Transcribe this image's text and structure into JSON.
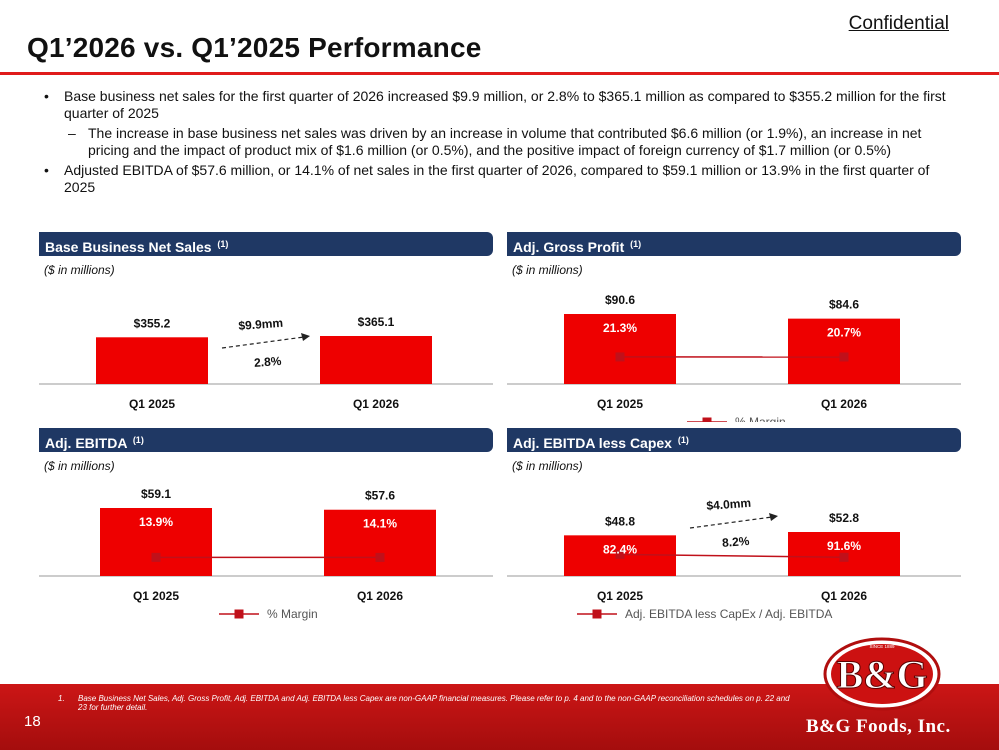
{
  "header": {
    "confidential": "Confidential",
    "title": "Q1’2026 vs. Q1’2025 Performance"
  },
  "bullets": {
    "b1": "Base business net sales for the first quarter of 2026 increased $9.9 million, or 2.8% to $365.1 million as compared to $355.2 million for the first quarter of 2025",
    "b1_sub": "The increase in base business net sales was driven by an increase in volume that contributed $6.6 million (or 1.9%), an increase in net pricing and the impact of product mix of $1.6 million (or 0.5%), and the positive impact of foreign currency of $1.7 million (or 0.5%)",
    "b2": "Adjusted EBITDA of $57.6 million, or 14.1% of net sales in the first quarter of 2026, compared to $59.1 million or 13.9% in the first quarter of 2025"
  },
  "panels": {
    "net_sales": {
      "title": "Base Business Net Sales",
      "footnote_ref": "(1)",
      "unit": "($ in millions)"
    },
    "gross_profit": {
      "title": "Adj. Gross Profit",
      "footnote_ref": "(1)",
      "unit": "($ in millions)"
    },
    "ebitda": {
      "title": "Adj. EBITDA",
      "footnote_ref": "(1)",
      "unit": "($ in millions)"
    },
    "ebitda_capex": {
      "title": "Adj. EBITDA less Capex",
      "footnote_ref": "(1)",
      "unit": "($ in millions)"
    }
  },
  "chart_data": [
    {
      "id": "net_sales",
      "type": "bar",
      "title": "Base Business Net Sales",
      "categories": [
        "Q1 2025",
        "Q1 2026"
      ],
      "values": [
        355.2,
        365.1
      ],
      "value_labels": [
        "$355.2",
        "$365.1"
      ],
      "annotation": {
        "change": "$9.9mm",
        "pct": "2.8%"
      },
      "colors": {
        "bar": "#ee0000",
        "line": "#c0101a"
      }
    },
    {
      "id": "gross_profit",
      "type": "bar",
      "title": "Adj. Gross Profit",
      "categories": [
        "Q1 2025",
        "Q1 2026"
      ],
      "values": [
        90.6,
        84.6
      ],
      "value_labels": [
        "$90.6",
        "$84.6"
      ],
      "margin_labels": [
        "21.3%",
        "20.7%"
      ],
      "margin_values": [
        21.3,
        20.7
      ],
      "legend": "% Margin",
      "colors": {
        "bar": "#ee0000",
        "line": "#c0101a"
      }
    },
    {
      "id": "ebitda",
      "type": "bar",
      "title": "Adj. EBITDA",
      "categories": [
        "Q1 2025",
        "Q1 2026"
      ],
      "values": [
        59.1,
        57.6
      ],
      "value_labels": [
        "$59.1",
        "$57.6"
      ],
      "margin_labels": [
        "13.9%",
        "14.1%"
      ],
      "margin_values": [
        13.9,
        14.1
      ],
      "legend": "% Margin",
      "colors": {
        "bar": "#ee0000",
        "line": "#c0101a"
      }
    },
    {
      "id": "ebitda_capex",
      "type": "bar",
      "title": "Adj. EBITDA less Capex",
      "categories": [
        "Q1 2025",
        "Q1 2026"
      ],
      "values": [
        48.8,
        52.8
      ],
      "value_labels": [
        "$48.8",
        "$52.8"
      ],
      "margin_labels": [
        "82.4%",
        "91.6%"
      ],
      "margin_values": [
        82.4,
        91.6
      ],
      "legend": "Adj. EBITDA less CapEx / Adj. EBITDA",
      "annotation": {
        "change": "$4.0mm",
        "pct": "8.2%"
      },
      "colors": {
        "bar": "#ee0000",
        "line": "#c0101a"
      }
    }
  ],
  "footer": {
    "page_number": "18",
    "footnote_num": "1.",
    "footnote": "Base Business Net Sales, Adj. Gross Profit, Adj. EBITDA and Adj. EBITDA less Capex are non-GAAP financial measures. Please refer to p. 4 and to the non-GAAP reconciliation schedules on p. 22 and 23 for further detail.",
    "brand": "B&G Foods, Inc.",
    "logo_text": "B&G",
    "logo_since": "SINCE 1889"
  }
}
